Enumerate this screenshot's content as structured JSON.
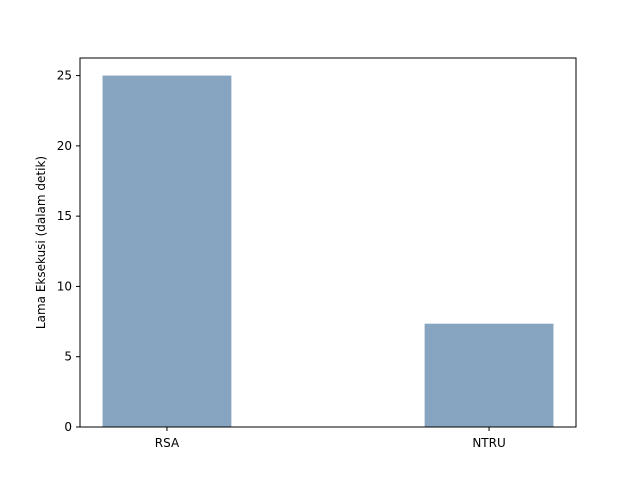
{
  "chart_data": {
    "type": "bar",
    "title": "",
    "xlabel": "",
    "ylabel": "Lama Eksekusi (dalam detik)",
    "categories": [
      "RSA",
      "NTRU"
    ],
    "values": [
      25.0,
      7.35
    ],
    "ylim": [
      0,
      26.25
    ],
    "yticks": [
      0,
      5,
      10,
      15,
      20,
      25
    ],
    "bar_color": "#87a4c0",
    "grid": false,
    "legend": "none"
  }
}
